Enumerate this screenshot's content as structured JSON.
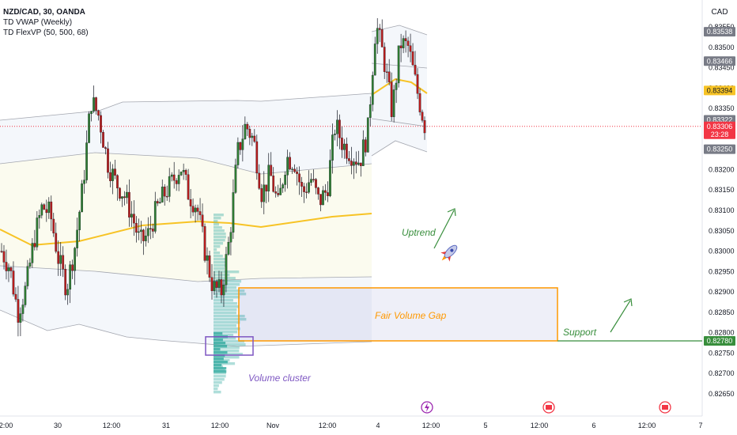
{
  "header": {
    "symbol": "NZD/CAD, 30, OANDA",
    "indicator_1": "TD VWAP (Weekly)",
    "indicator_2": "TD FlexVP (50, 500, 68)"
  },
  "chart_data": {
    "type": "candlestick",
    "currency": "CAD",
    "y_axis": {
      "range": [
        0.8262,
        0.8358
      ],
      "ticks": [
        "0.83550",
        "0.83500",
        "0.83450",
        "0.83400",
        "0.83350",
        "0.83300",
        "0.83250",
        "0.83200",
        "0.83150",
        "0.83100",
        "0.83050",
        "0.83000",
        "0.82950",
        "0.82900",
        "0.82850",
        "0.82800",
        "0.82750",
        "0.82700",
        "0.82650"
      ]
    },
    "x_axis": {
      "ticks": [
        "12:00",
        "30",
        "12:00",
        "31",
        "12:00",
        "Nov",
        "12:00",
        "4",
        "12:00",
        "5",
        "12:00",
        "6",
        "12:00",
        "7"
      ]
    },
    "price_labels": [
      {
        "value": "0.83538",
        "color": "#787b86"
      },
      {
        "value": "0.83466",
        "color": "#787b86"
      },
      {
        "value": "0.83394",
        "color": "#f7c325"
      },
      {
        "value": "0.83322",
        "color": "#787b86"
      },
      {
        "value": "0.83306",
        "countdown": "23:28",
        "color": "#f23645"
      },
      {
        "value": "0.83250",
        "color": "#787b86"
      },
      {
        "value": "0.82780",
        "color": "#388e3c"
      }
    ],
    "current_price": 0.83306,
    "support_level": 0.8278,
    "fair_volume_gap": {
      "top": 0.8291,
      "bottom": 0.8278
    },
    "volume_cluster": {
      "top": 0.8279,
      "bottom": 0.82745
    },
    "annotations": {
      "fvg_label": "Fair Volume Gap",
      "support_label": "Support",
      "uptrend_label": "Uptrend",
      "cluster_label": "Volume cluster",
      "rocket_icon": "rocket-icon"
    },
    "candle_close_path": [
      0.83,
      0.8296,
      0.8285,
      0.8291,
      0.8303,
      0.8311,
      0.8309,
      0.8298,
      0.8291,
      0.8301,
      0.8316,
      0.8337,
      0.8333,
      0.8322,
      0.8317,
      0.8314,
      0.8309,
      0.8302,
      0.8304,
      0.831,
      0.8314,
      0.8317,
      0.8321,
      0.8314,
      0.8311,
      0.83,
      0.8291,
      0.829,
      0.8303,
      0.8324,
      0.8331,
      0.8327,
      0.8314,
      0.8319,
      0.8311,
      0.8323,
      0.8322,
      0.8314,
      0.8318,
      0.8312,
      0.8315,
      0.8331,
      0.8326,
      0.8324,
      0.8322,
      0.8329,
      0.8356,
      0.8347,
      0.8334,
      0.8351,
      0.835,
      0.834,
      0.8331
    ]
  }
}
